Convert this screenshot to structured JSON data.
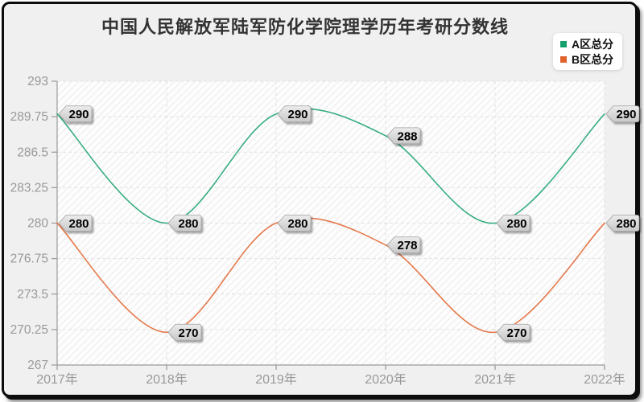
{
  "title": "中国人民解放军陆军防化学院理学历年考研分数线",
  "legend": {
    "items": [
      {
        "label": "A区总分"
      },
      {
        "label": "B区总分"
      }
    ]
  },
  "chart_data": {
    "type": "line",
    "smooth": true,
    "point_labels": true,
    "title": "中国人民解放军陆军防化学院理学历年考研分数线",
    "categories": [
      "2017年",
      "2018年",
      "2019年",
      "2020年",
      "2021年",
      "2022年"
    ],
    "series": [
      {
        "name": "A区总分",
        "color": "#14a06a",
        "values": [
          290,
          280,
          290,
          288,
          280,
          290
        ]
      },
      {
        "name": "B区总分",
        "color": "#e0622c",
        "values": [
          280,
          270,
          280,
          278,
          270,
          280
        ]
      }
    ],
    "yticks": [
      267,
      270.25,
      273.5,
      276.75,
      280,
      283.25,
      286.5,
      289.75,
      293
    ],
    "ylim": [
      267,
      293
    ],
    "xlabel": "",
    "ylabel": "",
    "grid": true,
    "legend_position": "top-right",
    "style": {
      "axis_color": "#999999",
      "tick_label_color": "#999999",
      "grid_color": "#e2e2e2",
      "hatch_color": "#ebebeb",
      "plot_bg": "#fdfdfd",
      "label_tag_top": "#ececec",
      "label_tag_bottom": "#c9c9c9",
      "label_tag_border": "#9e9e9e",
      "label_text_color": "#000000"
    }
  }
}
